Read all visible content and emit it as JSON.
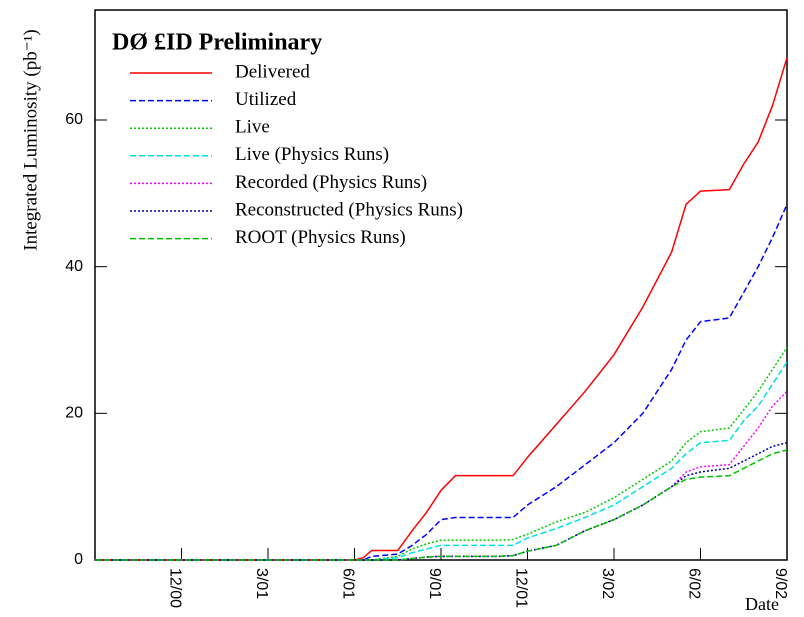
{
  "chart_data": {
    "type": "line",
    "title": "DØ £ID Preliminary",
    "ylabel": "Integrated Luminosity (pb⁻¹)",
    "xlabel": "Date",
    "x": [
      0,
      9,
      9.3,
      9.6,
      10.5,
      11,
      11.5,
      12,
      12.5,
      13,
      14,
      14.5,
      15,
      16,
      17,
      18,
      19,
      20,
      20.5,
      21,
      22,
      22.5,
      23,
      23.5,
      24
    ],
    "series": [
      {
        "name": "Delivered",
        "color": "#ff0000",
        "style": "solid",
        "values": [
          0,
          0,
          0.3,
          1.3,
          1.3,
          4,
          6.5,
          9.5,
          11.5,
          11.5,
          11.5,
          11.5,
          14,
          18.5,
          23,
          28,
          34.5,
          42,
          48.5,
          50.3,
          50.5,
          54,
          57,
          62,
          68.5
        ]
      },
      {
        "name": "Utilized",
        "color": "#0000ff",
        "style": "dashed",
        "values": [
          0,
          0,
          0,
          0.5,
          0.8,
          2,
          3.5,
          5.5,
          5.8,
          5.8,
          5.8,
          5.8,
          7.5,
          10,
          13,
          16,
          20,
          26,
          30,
          32.5,
          33,
          36.5,
          40,
          44,
          48.5
        ]
      },
      {
        "name": "Live",
        "color": "#00cc00",
        "style": "dotted",
        "values": [
          0,
          0,
          0,
          0,
          0.5,
          1.5,
          2.2,
          2.7,
          2.7,
          2.7,
          2.7,
          2.8,
          3.5,
          5.2,
          6.5,
          8.5,
          11,
          13.5,
          16,
          17.5,
          18,
          20.5,
          23,
          26,
          29
        ]
      },
      {
        "name": "Live (Physics Runs)",
        "color": "#00e0e0",
        "style": "dashed",
        "values": [
          0,
          0,
          0,
          0,
          0.3,
          1,
          1.5,
          2,
          2,
          2,
          2,
          2,
          3,
          4.3,
          5.8,
          7.5,
          10,
          12.5,
          14.5,
          16,
          16.3,
          19,
          21,
          24,
          27
        ]
      },
      {
        "name": "Recorded (Physics Runs)",
        "color": "#ff00ff",
        "style": "dotted",
        "values": [
          0,
          0,
          0,
          0,
          0,
          0.2,
          0.4,
          0.5,
          0.5,
          0.5,
          0.5,
          0.6,
          1.2,
          2,
          4,
          5.5,
          7.5,
          10,
          12,
          12.7,
          13,
          15.5,
          18,
          21,
          23
        ]
      },
      {
        "name": "Reconstructed (Physics Runs)",
        "color": "#0000aa",
        "style": "dotted",
        "values": [
          0,
          0,
          0,
          0,
          0,
          0.2,
          0.4,
          0.5,
          0.5,
          0.5,
          0.5,
          0.6,
          1.2,
          2,
          4,
          5.5,
          7.5,
          10,
          11.5,
          12,
          12.5,
          13.5,
          14.5,
          15.5,
          16
        ]
      },
      {
        "name": "ROOT (Physics Runs)",
        "color": "#00c000",
        "style": "dashed",
        "values": [
          0,
          0,
          0,
          0,
          0,
          0.2,
          0.4,
          0.5,
          0.5,
          0.5,
          0.5,
          0.6,
          1.2,
          2,
          4,
          5.5,
          7.5,
          10,
          11,
          11.3,
          11.5,
          12.5,
          13.5,
          14.5,
          15
        ]
      }
    ],
    "xlim": [
      0,
      24
    ],
    "xticks": [
      {
        "value": 3,
        "label": "12/00"
      },
      {
        "value": 6,
        "label": "3/01"
      },
      {
        "value": 9,
        "label": "6/01"
      },
      {
        "value": 12,
        "label": "9/01"
      },
      {
        "value": 15,
        "label": "12/01"
      },
      {
        "value": 18,
        "label": "3/02"
      },
      {
        "value": 21,
        "label": "6/02"
      },
      {
        "value": 24,
        "label": "9/02"
      }
    ],
    "ylim": [
      0,
      75
    ],
    "yticks": [
      0,
      20,
      40,
      60
    ],
    "legend": "upper left"
  }
}
